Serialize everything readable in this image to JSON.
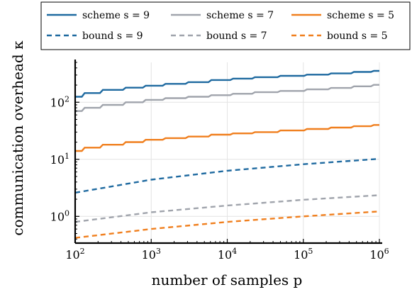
{
  "chart_data": {
    "type": "line",
    "xscale": "log",
    "yscale": "log",
    "xlim": [
      100,
      1000000
    ],
    "ylim": [
      0.34,
      500
    ],
    "grid": true,
    "legend_placement": "top",
    "xlabel": "number of samples p",
    "ylabel": "communication overhead κ",
    "x_ticks": [
      100,
      1000,
      10000,
      100000,
      1000000
    ],
    "x_tick_labels": [
      {
        "base": "10",
        "exp": "2"
      },
      {
        "base": "10",
        "exp": "3"
      },
      {
        "base": "10",
        "exp": "4"
      },
      {
        "base": "10",
        "exp": "5"
      },
      {
        "base": "10",
        "exp": "6"
      }
    ],
    "y_ticks": [
      1,
      10,
      100
    ],
    "y_tick_labels": [
      {
        "base": "10",
        "exp": "0"
      },
      {
        "base": "10",
        "exp": "1"
      },
      {
        "base": "10",
        "exp": "2"
      }
    ],
    "series": [
      {
        "name": "scheme s = 9",
        "color": "#1f6aa0",
        "dash": "solid",
        "x": [
          100,
          150,
          300,
          600,
          1000,
          2000,
          4000,
          8000,
          15000,
          30000,
          70000,
          150000,
          300000,
          600000,
          1000000
        ],
        "y": [
          125,
          145,
          165,
          180,
          195,
          210,
          225,
          245,
          260,
          275,
          290,
          305,
          320,
          340,
          355
        ]
      },
      {
        "name": "scheme s = 7",
        "color": "#a0a4ac",
        "dash": "solid",
        "x": [
          100,
          150,
          300,
          600,
          1000,
          2000,
          4000,
          8000,
          15000,
          30000,
          70000,
          150000,
          300000,
          600000,
          1000000
        ],
        "y": [
          70,
          80,
          90,
          100,
          110,
          118,
          125,
          133,
          141,
          150,
          158,
          168,
          178,
          190,
          202
        ]
      },
      {
        "name": "scheme s = 5",
        "color": "#f07f1e",
        "dash": "solid",
        "x": [
          100,
          150,
          300,
          600,
          1000,
          2000,
          4000,
          8000,
          15000,
          30000,
          70000,
          150000,
          300000,
          600000,
          1000000
        ],
        "y": [
          14,
          16,
          18,
          20,
          22,
          23.5,
          25,
          27,
          28.5,
          30,
          32,
          34,
          36,
          38,
          40
        ]
      },
      {
        "name": "bound s = 9",
        "color": "#1f6aa0",
        "dash": "dashed",
        "x": [
          100,
          1000,
          10000,
          100000,
          1000000
        ],
        "y": [
          2.6,
          4.4,
          6.3,
          8.2,
          10.2
        ]
      },
      {
        "name": "bound s = 7",
        "color": "#a0a4ac",
        "dash": "dashed",
        "x": [
          100,
          1000,
          10000,
          100000,
          1000000
        ],
        "y": [
          0.8,
          1.18,
          1.55,
          1.95,
          2.35
        ]
      },
      {
        "name": "bound s = 5",
        "color": "#f07f1e",
        "dash": "dashed",
        "x": [
          100,
          1000,
          10000,
          100000,
          1000000
        ],
        "y": [
          0.42,
          0.6,
          0.8,
          1.0,
          1.22
        ]
      }
    ]
  }
}
